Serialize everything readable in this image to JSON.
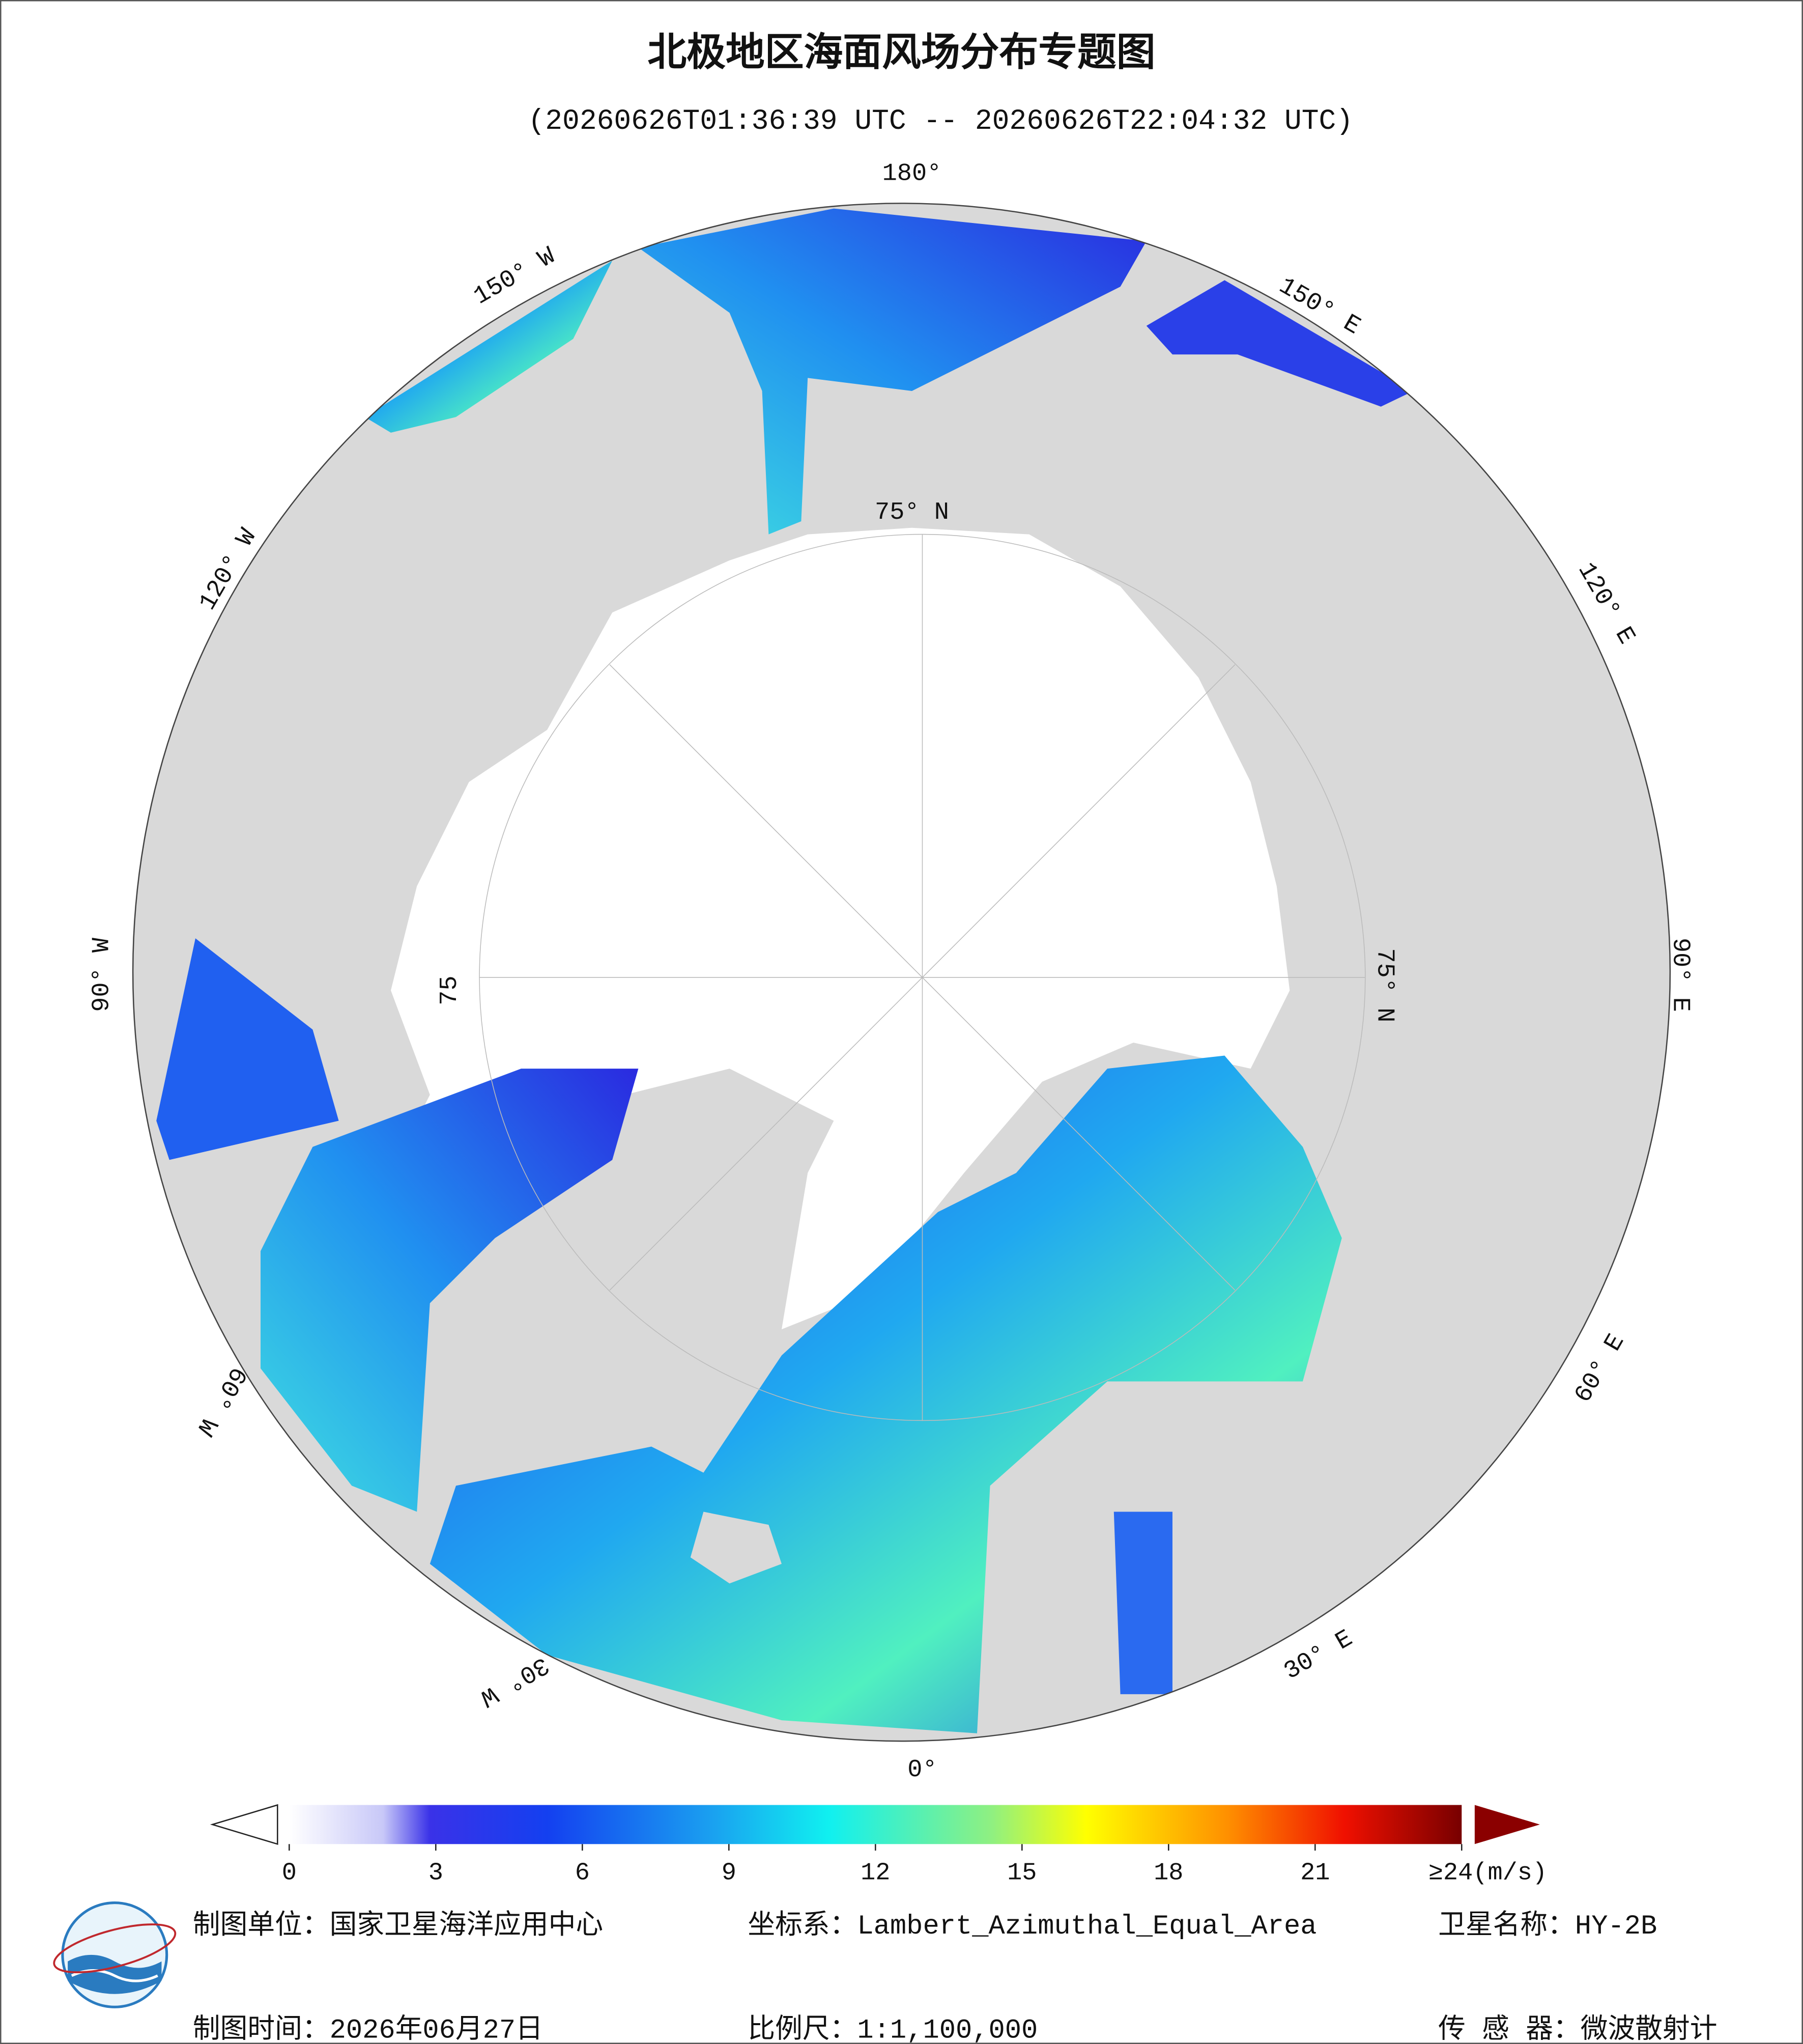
{
  "header": {
    "title": "北极地区海面风场分布专题图",
    "subtitle": "(20260626T01:36:39 UTC -- 20260626T22:04:32 UTC)"
  },
  "map": {
    "graticule_labels": [
      "180°",
      "150° W",
      "120° W",
      "90° W",
      "60° W",
      "30° W",
      "0°",
      "30° E",
      "60° E",
      "90° E",
      "120° E",
      "150° E",
      "75° N",
      "75° N",
      "75"
    ]
  },
  "colorbar": {
    "range": [
      0,
      24
    ],
    "ticks": [
      0,
      3,
      6,
      9,
      12,
      15,
      18,
      21,
      {
        "value": 24,
        "label": "≥24(m/s)"
      }
    ]
  },
  "footer": {
    "unit": "制图单位：国家卫星海洋应用中心",
    "crs": "坐标系：Lambert_Azimuthal_Equal_Area",
    "satellite": "卫星名称：HY-2B",
    "date": "制图时间：2026年06月27日",
    "scale": "比例尺：1:1,100,000",
    "sensor": "传 感 器：微波散射计"
  }
}
